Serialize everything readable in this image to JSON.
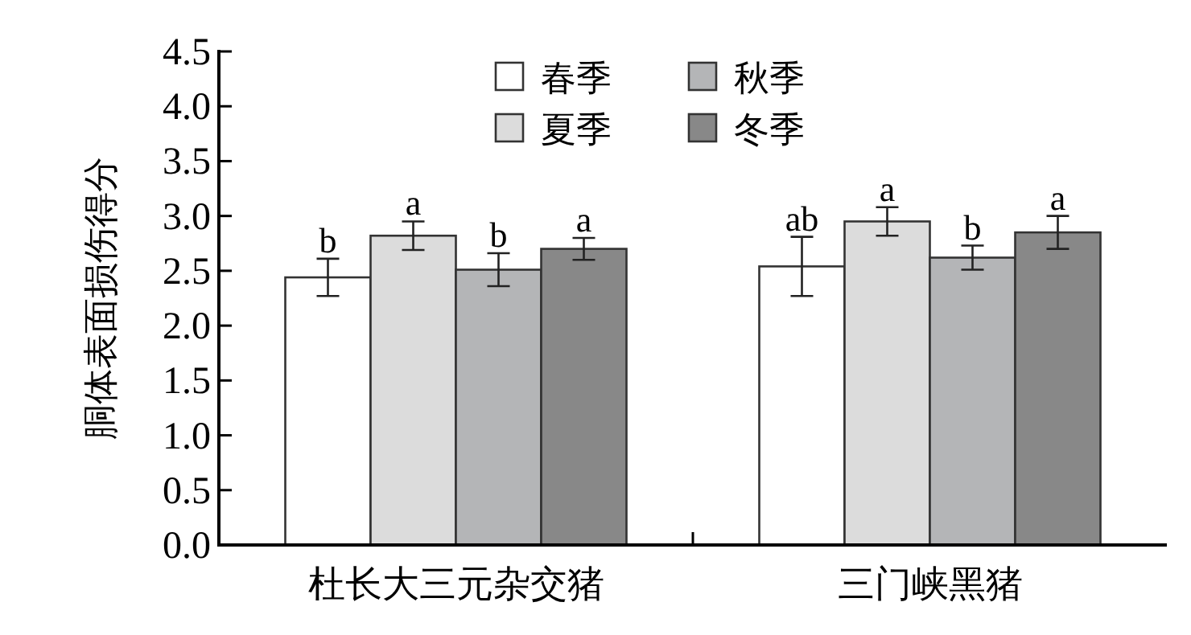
{
  "chart_data": {
    "type": "bar",
    "ylabel": "胴体表面损伤得分",
    "categories": [
      "杜长大三元杂交猪",
      "三门峡黑猪"
    ],
    "ylim": [
      0,
      4.5
    ],
    "yticks": [
      {
        "value": 0,
        "label": "0.0"
      },
      {
        "value": 0.5,
        "label": "0.5"
      },
      {
        "value": 1,
        "label": "1.0"
      },
      {
        "value": 1.5,
        "label": "1.5"
      },
      {
        "value": 2,
        "label": "2.0"
      },
      {
        "value": 2.5,
        "label": "2.5"
      },
      {
        "value": 3,
        "label": "3.0"
      },
      {
        "value": 3.5,
        "label": "3.5"
      },
      {
        "value": 4,
        "label": "4.0"
      },
      {
        "value": 4.5,
        "label": "4.5"
      }
    ],
    "legend": "top",
    "grid": false,
    "series": [
      {
        "name": "春季",
        "color": "#ffffff",
        "values": [
          2.44,
          2.54
        ],
        "errors": [
          0.17,
          0.27
        ],
        "value_labels": [
          "b",
          "ab"
        ]
      },
      {
        "name": "夏季",
        "color": "#dcdcdc",
        "values": [
          2.82,
          2.95
        ],
        "errors": [
          0.13,
          0.13
        ],
        "value_labels": [
          "a",
          "a"
        ]
      },
      {
        "name": "秋季",
        "color": "#b4b5b7",
        "values": [
          2.51,
          2.62
        ],
        "errors": [
          0.15,
          0.11
        ],
        "value_labels": [
          "b",
          "b"
        ]
      },
      {
        "name": "冬季",
        "color": "#888888",
        "values": [
          2.7,
          2.85
        ],
        "errors": [
          0.1,
          0.15
        ],
        "value_labels": [
          "a",
          "a"
        ]
      }
    ]
  }
}
